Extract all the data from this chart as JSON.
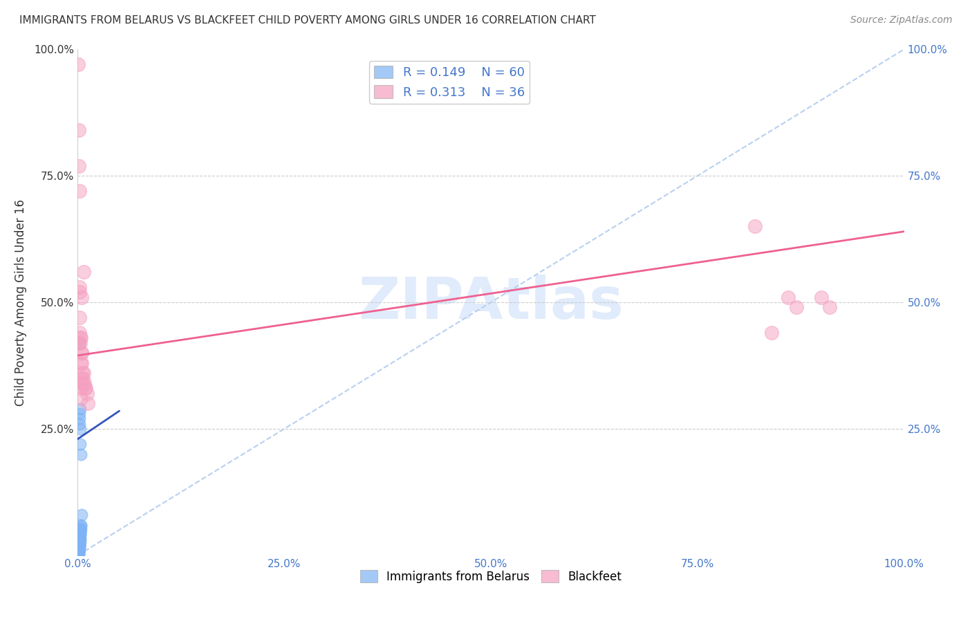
{
  "title": "IMMIGRANTS FROM BELARUS VS BLACKFEET CHILD POVERTY AMONG GIRLS UNDER 16 CORRELATION CHART",
  "source": "Source: ZipAtlas.com",
  "ylabel": "Child Poverty Among Girls Under 16",
  "xlim": [
    0,
    1.0
  ],
  "ylim": [
    0,
    1.0
  ],
  "xtick_labels": [
    "0.0%",
    "25.0%",
    "50.0%",
    "75.0%",
    "100.0%"
  ],
  "xtick_vals": [
    0.0,
    0.25,
    0.5,
    0.75,
    1.0
  ],
  "ytick_labels_left": [
    "",
    "25.0%",
    "50.0%",
    "75.0%",
    "100.0%"
  ],
  "ytick_labels_right": [
    "",
    "25.0%",
    "50.0%",
    "75.0%",
    "100.0%"
  ],
  "ytick_vals": [
    0.0,
    0.25,
    0.5,
    0.75,
    1.0
  ],
  "watermark": "ZIPAtlas",
  "legend_R1": "0.149",
  "legend_N1": "60",
  "legend_R2": "0.313",
  "legend_N2": "36",
  "color_blue": "#7EB3F5",
  "color_pink": "#F5A0C0",
  "color_blue_line": "#3355BB",
  "color_pink_line": "#EE6090",
  "color_diag": "#B8D0F0",
  "blue_scatter_x": [
    0.0008,
    0.001,
    0.0012,
    0.0014,
    0.0015,
    0.0016,
    0.0017,
    0.0018,
    0.0019,
    0.002,
    0.0021,
    0.0022,
    0.0023,
    0.0024,
    0.0025,
    0.0026,
    0.0027,
    0.0028,
    0.0029,
    0.003,
    0.0031,
    0.0032,
    0.0033,
    0.0034,
    0.0035,
    0.001,
    0.0012,
    0.0013,
    0.0015,
    0.0017,
    0.0019,
    0.0021,
    0.0023,
    0.0025,
    0.0027,
    0.0029,
    0.0008,
    0.0009,
    0.0011,
    0.0013,
    0.0015,
    0.0017,
    0.0019,
    0.0021,
    0.0023,
    0.0025,
    0.001,
    0.0012,
    0.0014,
    0.0016,
    0.0018,
    0.002,
    0.0022,
    0.0024,
    0.0026,
    0.0028,
    0.003,
    0.0035,
    0.004,
    0.005
  ],
  "blue_scatter_y": [
    0.005,
    0.01,
    0.008,
    0.015,
    0.012,
    0.018,
    0.02,
    0.025,
    0.022,
    0.03,
    0.028,
    0.035,
    0.032,
    0.038,
    0.036,
    0.04,
    0.042,
    0.045,
    0.043,
    0.048,
    0.046,
    0.05,
    0.055,
    0.052,
    0.058,
    0.003,
    0.006,
    0.009,
    0.012,
    0.015,
    0.018,
    0.021,
    0.024,
    0.027,
    0.03,
    0.033,
    0.004,
    0.007,
    0.01,
    0.013,
    0.016,
    0.019,
    0.022,
    0.025,
    0.028,
    0.031,
    0.002,
    0.005,
    0.008,
    0.011,
    0.42,
    0.26,
    0.27,
    0.28,
    0.29,
    0.25,
    0.22,
    0.2,
    0.06,
    0.08
  ],
  "pink_scatter_x": [
    0.0008,
    0.0012,
    0.0015,
    0.0018,
    0.002,
    0.0022,
    0.0025,
    0.0028,
    0.003,
    0.0035,
    0.0038,
    0.004,
    0.0042,
    0.0045,
    0.0048,
    0.005,
    0.0055,
    0.006,
    0.0065,
    0.007,
    0.0075,
    0.008,
    0.009,
    0.01,
    0.011,
    0.012,
    0.0015,
    0.0025,
    0.0035,
    0.0045,
    0.82,
    0.84,
    0.86,
    0.87,
    0.9,
    0.91
  ],
  "pink_scatter_y": [
    0.97,
    0.84,
    0.77,
    0.72,
    0.53,
    0.52,
    0.47,
    0.43,
    0.42,
    0.38,
    0.35,
    0.33,
    0.31,
    0.51,
    0.4,
    0.38,
    0.36,
    0.35,
    0.34,
    0.56,
    0.36,
    0.34,
    0.33,
    0.33,
    0.32,
    0.3,
    0.42,
    0.44,
    0.43,
    0.4,
    0.65,
    0.44,
    0.51,
    0.49,
    0.51,
    0.49
  ],
  "blue_line_x": [
    0.0,
    0.05
  ],
  "blue_line_y": [
    0.23,
    0.285
  ],
  "pink_line_x": [
    0.0,
    1.0
  ],
  "pink_line_y": [
    0.395,
    0.64
  ]
}
